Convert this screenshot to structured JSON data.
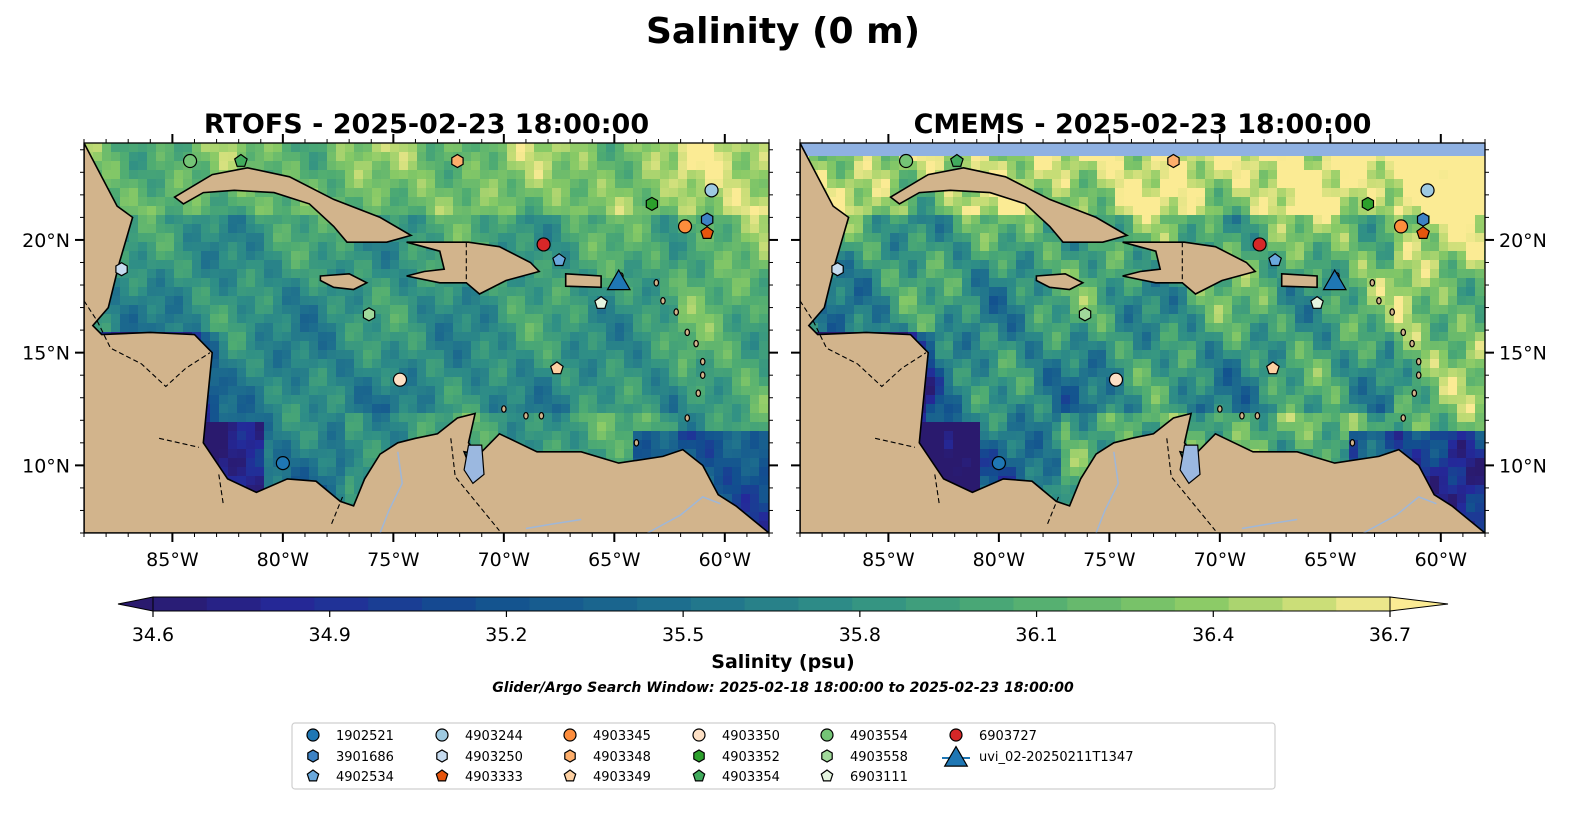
{
  "suptitle": "Salinity (0 m)",
  "panels": [
    {
      "title": "RTOFS - 2025-02-23 18:00:00",
      "y_ticks_side": "left",
      "top_band": false
    },
    {
      "title": "CMEMS - 2025-02-23 18:00:00",
      "y_ticks_side": "right",
      "top_band": true
    }
  ],
  "map": {
    "lon_range": [
      -89,
      -58
    ],
    "lat_range": [
      7,
      24.3
    ],
    "lon_ticks": [
      -85,
      -80,
      -75,
      -70,
      -65,
      -60
    ],
    "lon_tick_labels": [
      "85°W",
      "80°W",
      "75°W",
      "70°W",
      "65°W",
      "60°W"
    ],
    "lat_ticks": [
      10,
      15,
      20
    ],
    "lat_tick_labels": [
      "10°N",
      "15°N",
      "20°N"
    ],
    "land_color": "#d2b48c",
    "lake_color": "#9bb8e0"
  },
  "colorbar": {
    "label": "Salinity (psu)",
    "range": [
      34.6,
      36.7
    ],
    "ticks": [
      34.6,
      34.9,
      35.2,
      35.5,
      35.8,
      36.1,
      36.4,
      36.7
    ],
    "tick_labels": [
      "34.6",
      "34.9",
      "35.2",
      "35.5",
      "35.8",
      "36.1",
      "36.4",
      "36.7"
    ],
    "extend": "both",
    "colormap": "haline"
  },
  "subtitle": "Glider/Argo Search Window: 2025-02-18 18:00:00 to 2025-02-23 18:00:00",
  "chart_data": {
    "type": "scatter",
    "x_units": "longitude (degrees)",
    "y_units": "latitude (degrees)",
    "series": [
      {
        "name": "1902521",
        "marker": "circle",
        "color": "#1f77b4",
        "points": [
          [
            -80,
            10.1
          ]
        ]
      },
      {
        "name": "3901686",
        "marker": "hexagon",
        "color": "#3d82c4",
        "points": [
          [
            -60.8,
            20.9
          ]
        ]
      },
      {
        "name": "4902534",
        "marker": "pentagon",
        "color": "#6aa8dc",
        "points": [
          [
            -67.5,
            19.1
          ]
        ]
      },
      {
        "name": "4903244",
        "marker": "circle",
        "color": "#9ecae1",
        "points": [
          [
            -60.6,
            22.2
          ]
        ]
      },
      {
        "name": "4903250",
        "marker": "hexagon",
        "color": "#c6dbef",
        "points": [
          [
            -87.3,
            18.7
          ]
        ]
      },
      {
        "name": "4903333",
        "marker": "pentagon",
        "color": "#e6550d",
        "points": [
          [
            -60.8,
            20.3
          ]
        ]
      },
      {
        "name": "4903345",
        "marker": "circle",
        "color": "#fd8d3c",
        "points": [
          [
            -61.8,
            20.6
          ]
        ]
      },
      {
        "name": "4903348",
        "marker": "hexagon",
        "color": "#fdae6b",
        "points": [
          [
            -72.1,
            23.5
          ]
        ]
      },
      {
        "name": "4903349",
        "marker": "pentagon",
        "color": "#fdd0a2",
        "points": [
          [
            -67.6,
            14.3
          ]
        ]
      },
      {
        "name": "4903350",
        "marker": "circle",
        "color": "#fde0c5",
        "points": [
          [
            -74.7,
            13.8
          ]
        ]
      },
      {
        "name": "4903352",
        "marker": "hexagon",
        "color": "#2ca02c",
        "points": [
          [
            -63.3,
            21.6
          ]
        ]
      },
      {
        "name": "4903354",
        "marker": "pentagon",
        "color": "#41ab5d",
        "points": [
          [
            -81.9,
            23.5
          ]
        ]
      },
      {
        "name": "4903554",
        "marker": "circle",
        "color": "#74c476",
        "points": [
          [
            -84.2,
            23.5
          ]
        ]
      },
      {
        "name": "4903558",
        "marker": "hexagon",
        "color": "#a1d99b",
        "points": [
          [
            -76.1,
            16.7
          ]
        ]
      },
      {
        "name": "6903111",
        "marker": "pentagon",
        "color": "#e5f5e0",
        "points": [
          [
            -65.6,
            17.2
          ]
        ]
      },
      {
        "name": "6903727",
        "marker": "circle",
        "color": "#d62728",
        "points": [
          [
            -68.2,
            19.8
          ]
        ]
      },
      {
        "name": "uvi_02-20250211T1347",
        "marker": "triangle",
        "color": "#1f77b4",
        "points": [
          [
            -64.8,
            18.2
          ]
        ]
      }
    ]
  }
}
